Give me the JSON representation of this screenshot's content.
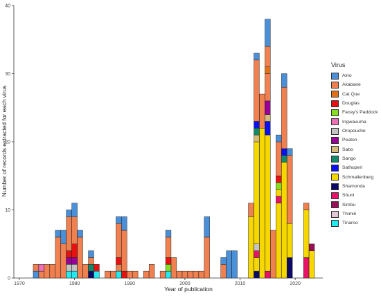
{
  "chart_data": {
    "type": "bar",
    "stacked": true,
    "xlabel": "Year of publication",
    "ylabel": "Number of records extracted for each virus",
    "xlim": [
      1969,
      2025
    ],
    "ylim": [
      0,
      40
    ],
    "xticks": [
      1970,
      1980,
      1990,
      2000,
      2010,
      2020
    ],
    "yticks": [
      0,
      10,
      20,
      30,
      40
    ],
    "grid": false,
    "legend": {
      "title": "Virus",
      "position": "right"
    },
    "viruses": [
      {
        "name": "Aino",
        "color": "#4a90d9"
      },
      {
        "name": "Akabane",
        "color": "#f08050"
      },
      {
        "name": "Cat Que",
        "color": "#e0701a"
      },
      {
        "name": "Douglas",
        "color": "#e81010"
      },
      {
        "name": "Facey's Paddock",
        "color": "#88dd22"
      },
      {
        "name": "Ingwavuma",
        "color": "#f070b8"
      },
      {
        "name": "Oropouche",
        "color": "#c4c4c4"
      },
      {
        "name": "Peaton",
        "color": "#990099"
      },
      {
        "name": "Sabo",
        "color": "#d4bc78"
      },
      {
        "name": "Sango",
        "color": "#0f8a6a"
      },
      {
        "name": "Sathuperi",
        "color": "#0a10ee"
      },
      {
        "name": "Schmallenberg",
        "color": "#f6d700"
      },
      {
        "name": "Shamonda",
        "color": "#0b0a66"
      },
      {
        "name": "Shuni",
        "color": "#e8126a"
      },
      {
        "name": "Simbu",
        "color": "#9a0f5a"
      },
      {
        "name": "Thimiri",
        "color": "#e4c8d8"
      },
      {
        "name": "Tinaroo",
        "color": "#22eaf0"
      }
    ],
    "data": [
      {
        "x": 1973,
        "values": {
          "Aino": 1,
          "Akabane": 1
        }
      },
      {
        "x": 1974,
        "values": {
          "Akabane": 1,
          "Ingwavuma": 1
        }
      },
      {
        "x": 1975,
        "values": {
          "Akabane": 2
        }
      },
      {
        "x": 1976,
        "values": {
          "Akabane": 2
        }
      },
      {
        "x": 1977,
        "values": {
          "Akabane": 6,
          "Aino": 1
        }
      },
      {
        "x": 1978,
        "values": {
          "Akabane": 5,
          "Aino": 2
        }
      },
      {
        "x": 1979,
        "values": {
          "Tinaroo": 1,
          "Oropouche": 1,
          "Peaton": 1,
          "Douglas": 1,
          "Akabane": 5,
          "Aino": 1
        }
      },
      {
        "x": 1980,
        "values": {
          "Tinaroo": 1,
          "Oropouche": 1,
          "Peaton": 1,
          "Douglas": 2,
          "Akabane": 4,
          "Aino": 2
        }
      },
      {
        "x": 1981,
        "values": {
          "Akabane": 6,
          "Aino": 1
        }
      },
      {
        "x": 1982,
        "values": {
          "Akabane": 2
        }
      },
      {
        "x": 1983,
        "values": {
          "Shamonda": 1,
          "Sango": 1,
          "Akabane": 1,
          "Aino": 1
        }
      },
      {
        "x": 1984,
        "values": {
          "Tinaroo": 1,
          "Douglas": 1
        }
      },
      {
        "x": 1986,
        "values": {
          "Akabane": 1
        }
      },
      {
        "x": 1987,
        "values": {
          "Akabane": 1
        }
      },
      {
        "x": 1988,
        "values": {
          "Tinaroo": 1,
          "Akabane": 1,
          "Douglas": 1,
          "Akabane_2": 5,
          "Aino": 1
        }
      },
      {
        "x": 1989,
        "values": {
          "Douglas": 1,
          "Akabane": 6,
          "Aino": 2
        }
      },
      {
        "x": 1990,
        "values": {
          "Akabane": 1
        }
      },
      {
        "x": 1991,
        "values": {
          "Akabane": 1
        }
      },
      {
        "x": 1993,
        "values": {
          "Akabane": 1
        }
      },
      {
        "x": 1994,
        "values": {
          "Akabane": 2
        }
      },
      {
        "x": 1996,
        "values": {
          "Akabane": 1
        }
      },
      {
        "x": 1997,
        "values": {
          "Tinaroo": 1,
          "Facey's Paddock": 1,
          "Douglas": 1,
          "Akabane": 3,
          "Aino": 1
        }
      },
      {
        "x": 1998,
        "values": {
          "Akabane": 3
        }
      },
      {
        "x": 1999,
        "values": {
          "Akabane": 1
        }
      },
      {
        "x": 2000,
        "values": {
          "Akabane": 1
        }
      },
      {
        "x": 2001,
        "values": {
          "Akabane": 1
        }
      },
      {
        "x": 2002,
        "values": {
          "Akabane": 1
        }
      },
      {
        "x": 2003,
        "values": {
          "Akabane": 1
        }
      },
      {
        "x": 2004,
        "values": {
          "Akabane": 6,
          "Aino": 3
        }
      },
      {
        "x": 2007,
        "values": {
          "Akabane": 2,
          "Aino": 1
        }
      },
      {
        "x": 2008,
        "values": {
          "Aino": 4
        }
      },
      {
        "x": 2009,
        "values": {
          "Aino": 4
        }
      },
      {
        "x": 2012,
        "values": {
          "Schmallenberg": 9,
          "Akabane": 2
        }
      },
      {
        "x": 2013,
        "values": {
          "Shamonda": 1,
          "Schmallenberg": 2,
          "Shuni": 1,
          "Oropouche": 1,
          "Schmallenberg_2": 15,
          "Sabo": 1,
          "Sango": 1,
          "Sathuperi": 1,
          "Akabane": 9,
          "Aino": 1
        }
      },
      {
        "x": 2014,
        "values": {
          "Schmallenberg": 22,
          "Akabane": 5
        }
      },
      {
        "x": 2015,
        "values": {
          "Shuni": 1,
          "Schmallenberg": 20,
          "Sathuperi": 2,
          "Sabo": 1,
          "Peaton": 2,
          "Akabane": 4,
          "Cat Que": 1,
          "Akabane_2": 3,
          "Aino": 4
        }
      },
      {
        "x": 2016,
        "values": {
          "Akabane": 7
        }
      },
      {
        "x": 2017,
        "values": {
          "Schmallenberg": 11,
          "Shuni": 1,
          "Schmallenberg_2": 1,
          "Facey's Paddock": 1,
          "Douglas": 1,
          "Akabane": 5,
          "Aino": 1
        }
      },
      {
        "x": 2018,
        "values": {
          "Schmallenberg": 17,
          "Sango": 1,
          "Sathuperi": 1,
          "Akabane": 9,
          "Aino": 2
        }
      },
      {
        "x": 2019,
        "values": {
          "Shamonda": 3,
          "Schmallenberg": 5,
          "Akabane": 10,
          "Aino": 1
        }
      },
      {
        "x": 2022,
        "values": {
          "Shuni": 3,
          "Schmallenberg": 7,
          "Akabane": 1
        }
      },
      {
        "x": 2023,
        "values": {
          "Schmallenberg": 4,
          "Simbu": 1
        }
      }
    ]
  }
}
